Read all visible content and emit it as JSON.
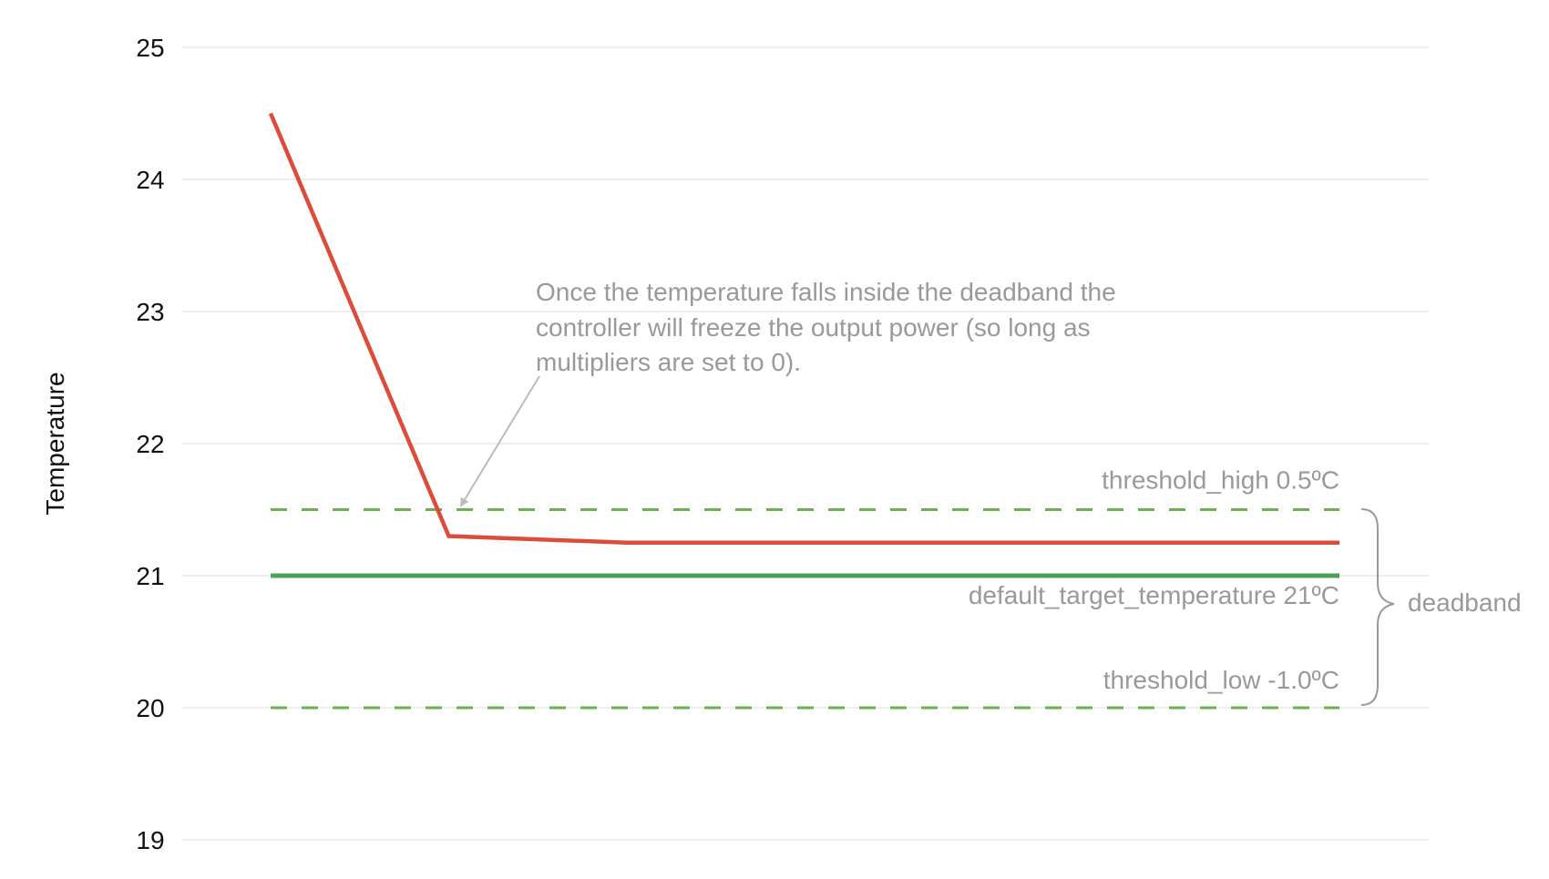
{
  "chart_data": {
    "type": "line",
    "title": "",
    "xlabel": "",
    "ylabel": "Temperature",
    "ylim": [
      19,
      25
    ],
    "yticks": [
      "19",
      "20",
      "21",
      "22",
      "23",
      "24",
      "25"
    ],
    "grid": true,
    "x_range": [
      0,
      6
    ],
    "series": [
      {
        "x": [
          0,
          1,
          2,
          6
        ],
        "values": [
          24.5,
          21.3,
          21.25,
          21.25
        ],
        "color": "#dd4b39",
        "style": "solid"
      }
    ],
    "reference_lines": [
      {
        "id": "threshold_high",
        "y": 21.5,
        "color": "#6ab04c",
        "style": "dashed",
        "label": "threshold_high  0.5ºC"
      },
      {
        "id": "target",
        "y": 21,
        "color": "#4ea05a",
        "style": "solid",
        "label": "default_target_temperature  21ºC"
      },
      {
        "id": "threshold_low",
        "y": 20,
        "color": "#6ab04c",
        "style": "dashed",
        "label": "threshold_low  -1.0ºC"
      }
    ],
    "annotations": {
      "note_lines": [
        "Once the temperature falls inside the deadband the",
        "controller will freeze the output power (so long as",
        "multipliers are set to 0)."
      ],
      "brace_label": "deadband"
    }
  }
}
